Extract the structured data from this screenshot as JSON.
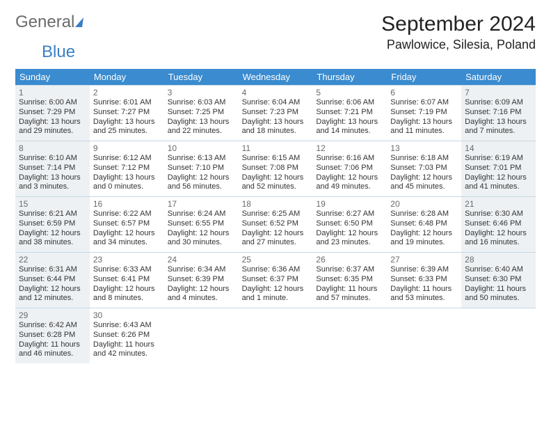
{
  "logo": {
    "word1": "General",
    "word2": "Blue"
  },
  "title": "September 2024",
  "location": "Pawlowice, Silesia, Poland",
  "columns": [
    "Sunday",
    "Monday",
    "Tuesday",
    "Wednesday",
    "Thursday",
    "Friday",
    "Saturday"
  ],
  "colors": {
    "header_bg": "#3a8bcf",
    "header_text": "#ffffff",
    "border": "#c6d8e6",
    "shaded_bg": "#eef1f3",
    "text": "#333333",
    "logo_blue": "#3a7fc4"
  },
  "weeks": [
    [
      {
        "n": "1",
        "shaded": true,
        "sunrise": "Sunrise: 6:00 AM",
        "sunset": "Sunset: 7:29 PM",
        "day1": "Daylight: 13 hours",
        "day2": "and 29 minutes."
      },
      {
        "n": "2",
        "sunrise": "Sunrise: 6:01 AM",
        "sunset": "Sunset: 7:27 PM",
        "day1": "Daylight: 13 hours",
        "day2": "and 25 minutes."
      },
      {
        "n": "3",
        "sunrise": "Sunrise: 6:03 AM",
        "sunset": "Sunset: 7:25 PM",
        "day1": "Daylight: 13 hours",
        "day2": "and 22 minutes."
      },
      {
        "n": "4",
        "sunrise": "Sunrise: 6:04 AM",
        "sunset": "Sunset: 7:23 PM",
        "day1": "Daylight: 13 hours",
        "day2": "and 18 minutes."
      },
      {
        "n": "5",
        "sunrise": "Sunrise: 6:06 AM",
        "sunset": "Sunset: 7:21 PM",
        "day1": "Daylight: 13 hours",
        "day2": "and 14 minutes."
      },
      {
        "n": "6",
        "sunrise": "Sunrise: 6:07 AM",
        "sunset": "Sunset: 7:19 PM",
        "day1": "Daylight: 13 hours",
        "day2": "and 11 minutes."
      },
      {
        "n": "7",
        "shaded": true,
        "sunrise": "Sunrise: 6:09 AM",
        "sunset": "Sunset: 7:16 PM",
        "day1": "Daylight: 13 hours",
        "day2": "and 7 minutes."
      }
    ],
    [
      {
        "n": "8",
        "shaded": true,
        "sunrise": "Sunrise: 6:10 AM",
        "sunset": "Sunset: 7:14 PM",
        "day1": "Daylight: 13 hours",
        "day2": "and 3 minutes."
      },
      {
        "n": "9",
        "sunrise": "Sunrise: 6:12 AM",
        "sunset": "Sunset: 7:12 PM",
        "day1": "Daylight: 13 hours",
        "day2": "and 0 minutes."
      },
      {
        "n": "10",
        "sunrise": "Sunrise: 6:13 AM",
        "sunset": "Sunset: 7:10 PM",
        "day1": "Daylight: 12 hours",
        "day2": "and 56 minutes."
      },
      {
        "n": "11",
        "sunrise": "Sunrise: 6:15 AM",
        "sunset": "Sunset: 7:08 PM",
        "day1": "Daylight: 12 hours",
        "day2": "and 52 minutes."
      },
      {
        "n": "12",
        "sunrise": "Sunrise: 6:16 AM",
        "sunset": "Sunset: 7:06 PM",
        "day1": "Daylight: 12 hours",
        "day2": "and 49 minutes."
      },
      {
        "n": "13",
        "sunrise": "Sunrise: 6:18 AM",
        "sunset": "Sunset: 7:03 PM",
        "day1": "Daylight: 12 hours",
        "day2": "and 45 minutes."
      },
      {
        "n": "14",
        "shaded": true,
        "sunrise": "Sunrise: 6:19 AM",
        "sunset": "Sunset: 7:01 PM",
        "day1": "Daylight: 12 hours",
        "day2": "and 41 minutes."
      }
    ],
    [
      {
        "n": "15",
        "shaded": true,
        "sunrise": "Sunrise: 6:21 AM",
        "sunset": "Sunset: 6:59 PM",
        "day1": "Daylight: 12 hours",
        "day2": "and 38 minutes."
      },
      {
        "n": "16",
        "sunrise": "Sunrise: 6:22 AM",
        "sunset": "Sunset: 6:57 PM",
        "day1": "Daylight: 12 hours",
        "day2": "and 34 minutes."
      },
      {
        "n": "17",
        "sunrise": "Sunrise: 6:24 AM",
        "sunset": "Sunset: 6:55 PM",
        "day1": "Daylight: 12 hours",
        "day2": "and 30 minutes."
      },
      {
        "n": "18",
        "sunrise": "Sunrise: 6:25 AM",
        "sunset": "Sunset: 6:52 PM",
        "day1": "Daylight: 12 hours",
        "day2": "and 27 minutes."
      },
      {
        "n": "19",
        "sunrise": "Sunrise: 6:27 AM",
        "sunset": "Sunset: 6:50 PM",
        "day1": "Daylight: 12 hours",
        "day2": "and 23 minutes."
      },
      {
        "n": "20",
        "sunrise": "Sunrise: 6:28 AM",
        "sunset": "Sunset: 6:48 PM",
        "day1": "Daylight: 12 hours",
        "day2": "and 19 minutes."
      },
      {
        "n": "21",
        "shaded": true,
        "sunrise": "Sunrise: 6:30 AM",
        "sunset": "Sunset: 6:46 PM",
        "day1": "Daylight: 12 hours",
        "day2": "and 16 minutes."
      }
    ],
    [
      {
        "n": "22",
        "shaded": true,
        "sunrise": "Sunrise: 6:31 AM",
        "sunset": "Sunset: 6:44 PM",
        "day1": "Daylight: 12 hours",
        "day2": "and 12 minutes."
      },
      {
        "n": "23",
        "sunrise": "Sunrise: 6:33 AM",
        "sunset": "Sunset: 6:41 PM",
        "day1": "Daylight: 12 hours",
        "day2": "and 8 minutes."
      },
      {
        "n": "24",
        "sunrise": "Sunrise: 6:34 AM",
        "sunset": "Sunset: 6:39 PM",
        "day1": "Daylight: 12 hours",
        "day2": "and 4 minutes."
      },
      {
        "n": "25",
        "sunrise": "Sunrise: 6:36 AM",
        "sunset": "Sunset: 6:37 PM",
        "day1": "Daylight: 12 hours",
        "day2": "and 1 minute."
      },
      {
        "n": "26",
        "sunrise": "Sunrise: 6:37 AM",
        "sunset": "Sunset: 6:35 PM",
        "day1": "Daylight: 11 hours",
        "day2": "and 57 minutes."
      },
      {
        "n": "27",
        "sunrise": "Sunrise: 6:39 AM",
        "sunset": "Sunset: 6:33 PM",
        "day1": "Daylight: 11 hours",
        "day2": "and 53 minutes."
      },
      {
        "n": "28",
        "shaded": true,
        "sunrise": "Sunrise: 6:40 AM",
        "sunset": "Sunset: 6:30 PM",
        "day1": "Daylight: 11 hours",
        "day2": "and 50 minutes."
      }
    ],
    [
      {
        "n": "29",
        "shaded": true,
        "sunrise": "Sunrise: 6:42 AM",
        "sunset": "Sunset: 6:28 PM",
        "day1": "Daylight: 11 hours",
        "day2": "and 46 minutes."
      },
      {
        "n": "30",
        "sunrise": "Sunrise: 6:43 AM",
        "sunset": "Sunset: 6:26 PM",
        "day1": "Daylight: 11 hours",
        "day2": "and 42 minutes."
      }
    ]
  ]
}
